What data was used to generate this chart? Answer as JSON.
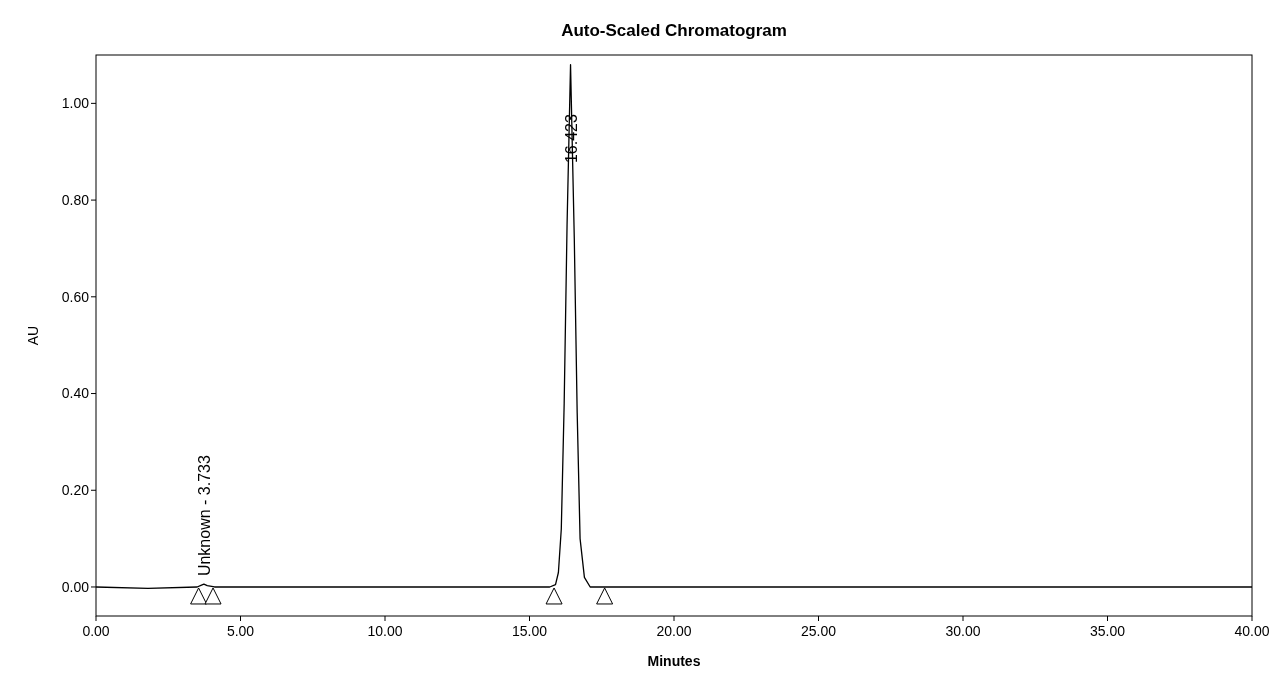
{
  "chart_data": {
    "type": "line",
    "title": "Auto-Scaled Chromatogram",
    "xlabel": "Minutes",
    "ylabel": "AU",
    "x": [
      0,
      1.8,
      3.5,
      3.65,
      3.733,
      3.85,
      4.1,
      15.7,
      15.9,
      16.0,
      16.1,
      16.2,
      16.3,
      16.42,
      16.55,
      16.65,
      16.75,
      16.9,
      17.1,
      40
    ],
    "series": [
      {
        "color": "#000000",
        "values": [
          0,
          -0.003,
          0,
          0.004,
          0.006,
          0.003,
          0,
          0,
          0.005,
          0.03,
          0.12,
          0.38,
          0.75,
          1.08,
          0.72,
          0.36,
          0.1,
          0.02,
          0,
          0
        ]
      }
    ],
    "xlim": [
      0,
      40
    ],
    "ylim": [
      -0.06,
      1.1
    ],
    "xticks": [
      {
        "value": 0,
        "label": "0.00"
      },
      {
        "value": 5,
        "label": "5.00"
      },
      {
        "value": 10,
        "label": "10.00"
      },
      {
        "value": 15,
        "label": "15.00"
      },
      {
        "value": 20,
        "label": "20.00"
      },
      {
        "value": 25,
        "label": "25.00"
      },
      {
        "value": 30,
        "label": "30.00"
      },
      {
        "value": 35,
        "label": "35.00"
      },
      {
        "value": 40,
        "label": "40.00"
      }
    ],
    "yticks": [
      {
        "value": 0,
        "label": "0.00"
      },
      {
        "value": 0.2,
        "label": "0.20"
      },
      {
        "value": 0.4,
        "label": "0.40"
      },
      {
        "value": 0.6,
        "label": "0.60"
      },
      {
        "value": 0.8,
        "label": "0.80"
      },
      {
        "value": 1,
        "label": "1.00"
      }
    ],
    "grid": false,
    "marker": "none",
    "line_style": "solid",
    "annotations": [
      {
        "text": "Unknown - 3.733",
        "x": 3.733,
        "y": 0.006
      },
      {
        "text": "16.423",
        "x": 16.423,
        "y": 0.86
      }
    ]
  }
}
